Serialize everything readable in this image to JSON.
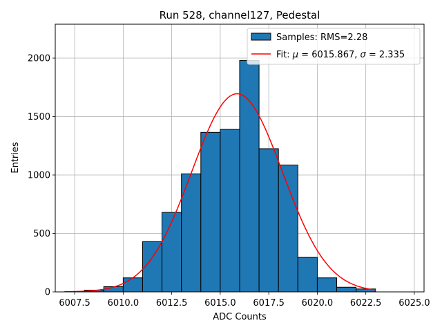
{
  "chart_data": {
    "type": "bar",
    "title": "Run 528, channel127, Pedestal",
    "xlabel": "ADC Counts",
    "ylabel": "Entries",
    "xlim": [
      6006.5,
      6025.5
    ],
    "ylim": [
      0,
      2290
    ],
    "x_ticks": [
      6007.5,
      6010.0,
      6012.5,
      6015.0,
      6017.5,
      6020.0,
      6022.5,
      6025.0
    ],
    "x_tick_labels": [
      "6007.5",
      "6010.0",
      "6012.5",
      "6015.0",
      "6017.5",
      "6020.0",
      "6022.5",
      "6025.0"
    ],
    "y_ticks": [
      0,
      500,
      1000,
      1500,
      2000
    ],
    "y_tick_labels": [
      "0",
      "500",
      "1000",
      "1500",
      "2000"
    ],
    "grid": true,
    "legend_position": "top-right",
    "histogram": {
      "name": "Samples: RMS=2.28",
      "bin_edges": [
        6007,
        6008,
        6009,
        6010,
        6011,
        6012,
        6013,
        6014,
        6015,
        6016,
        6017,
        6018,
        6019,
        6020,
        6021,
        6022,
        6023
      ],
      "counts": [
        3,
        15,
        45,
        120,
        430,
        680,
        1010,
        1365,
        1390,
        1980,
        1225,
        1085,
        295,
        120,
        40,
        25
      ],
      "color": "#1f77b4",
      "edge_color": "#000000"
    },
    "fit": {
      "name_prefix": "Fit: ",
      "name_parts": [
        {
          "text": "Fit: ",
          "italic": false
        },
        {
          "text": "μ",
          "italic": true
        },
        {
          "text": " = 6015.867, ",
          "italic": false
        },
        {
          "text": "σ",
          "italic": true
        },
        {
          "text": " = 2.335",
          "italic": false
        }
      ],
      "mu": 6015.867,
      "sigma": 2.335,
      "amplitude": 1695,
      "x_range": [
        6007,
        6023
      ],
      "color": "#ff0000"
    }
  }
}
